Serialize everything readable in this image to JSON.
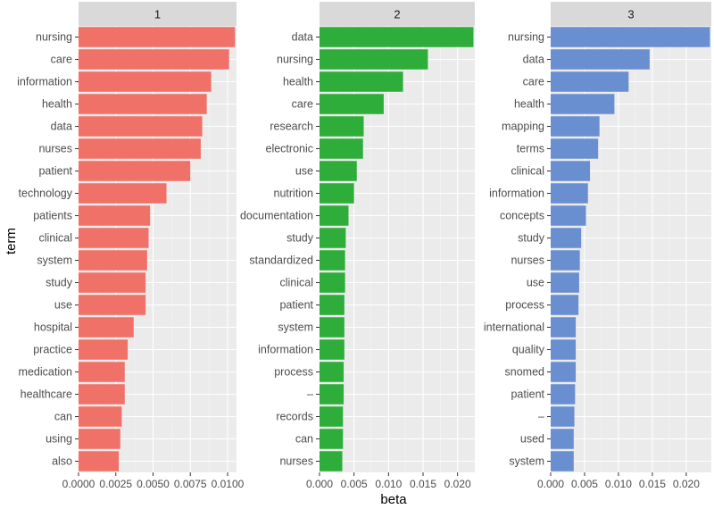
{
  "chart_data": {
    "type": "bar",
    "xlabel": "beta",
    "ylabel": "term",
    "panels": [
      {
        "title": "1",
        "color": "#F07168",
        "xlim": [
          0,
          0.0106
        ],
        "xticks": [
          0,
          0.0025,
          0.005,
          0.0075,
          0.01
        ],
        "xtick_labels": [
          "0.0000",
          "0.0025",
          "0.0050",
          "0.0075",
          "0.0100"
        ],
        "categories": [
          "nursing",
          "care",
          "information",
          "health",
          "data",
          "nurses",
          "patient",
          "technology",
          "patients",
          "clinical",
          "system",
          "study",
          "use",
          "hospital",
          "practice",
          "medication",
          "healthcare",
          "can",
          "using",
          "also"
        ],
        "values": [
          0.0105,
          0.0101,
          0.0089,
          0.0086,
          0.0083,
          0.0082,
          0.0075,
          0.0059,
          0.0048,
          0.0047,
          0.0046,
          0.0045,
          0.0045,
          0.0037,
          0.0033,
          0.0031,
          0.0031,
          0.0029,
          0.0028,
          0.0027
        ]
      },
      {
        "title": "2",
        "color": "#2EAD3A",
        "xlim": [
          0,
          0.0225
        ],
        "xticks": [
          0,
          0.005,
          0.01,
          0.015,
          0.02
        ],
        "xtick_labels": [
          "0.000",
          "0.005",
          "0.010",
          "0.015",
          "0.020"
        ],
        "categories": [
          "data",
          "nursing",
          "health",
          "care",
          "research",
          "electronic",
          "use",
          "nutrition",
          "documentation",
          "study",
          "standardized",
          "clinical",
          "patient",
          "system",
          "information",
          "process",
          "–",
          "records",
          "can",
          "nurses"
        ],
        "values": [
          0.0223,
          0.0157,
          0.0121,
          0.0093,
          0.0064,
          0.0063,
          0.0054,
          0.005,
          0.0042,
          0.0038,
          0.0037,
          0.0037,
          0.0036,
          0.0036,
          0.0036,
          0.0035,
          0.0035,
          0.0034,
          0.0034,
          0.0033
        ]
      },
      {
        "title": "3",
        "color": "#6A8FD0",
        "xlim": [
          0,
          0.0237
        ],
        "xticks": [
          0,
          0.005,
          0.01,
          0.015,
          0.02
        ],
        "xtick_labels": [
          "0.000",
          "0.005",
          "0.010",
          "0.015",
          "0.020"
        ],
        "categories": [
          "nursing",
          "data",
          "care",
          "health",
          "mapping",
          "terms",
          "clinical",
          "information",
          "concepts",
          "study",
          "nurses",
          "use",
          "process",
          "international",
          "quality",
          "snomed",
          "patient",
          "–",
          "used",
          "system"
        ],
        "values": [
          0.0235,
          0.0146,
          0.0115,
          0.0094,
          0.0072,
          0.007,
          0.0058,
          0.0055,
          0.0052,
          0.0045,
          0.0043,
          0.0042,
          0.0041,
          0.0037,
          0.0037,
          0.0037,
          0.0036,
          0.0035,
          0.0034,
          0.0034
        ]
      }
    ]
  }
}
